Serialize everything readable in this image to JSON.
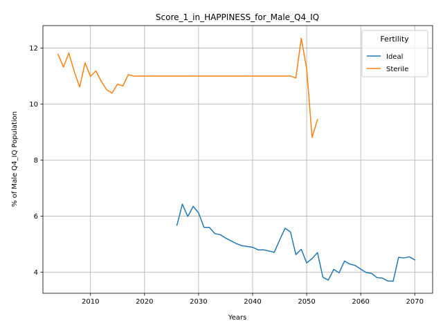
{
  "chart_data": {
    "type": "line",
    "title": "Score_1_in_HAPPINESS_for_Male_Q4_IQ",
    "xlabel": "Years",
    "ylabel": "% of Male Q4_IQ Population",
    "xlim": [
      2001.2,
      2073.3
    ],
    "ylim": [
      3.25,
      12.8
    ],
    "x_ticks": [
      2010,
      2020,
      2030,
      2040,
      2050,
      2060,
      2070
    ],
    "y_ticks": [
      4,
      6,
      8,
      10,
      12
    ],
    "grid": true,
    "legend": {
      "title": "Fertility",
      "placement": "top-right"
    },
    "series": [
      {
        "name": "Ideal",
        "color": "#1f77b4",
        "x": [
          2026,
          2027,
          2028,
          2029,
          2030,
          2031,
          2032,
          2033,
          2034,
          2035,
          2036,
          2037,
          2038,
          2039,
          2040,
          2041,
          2042,
          2043,
          2044,
          2045,
          2046,
          2047,
          2048,
          2049,
          2050,
          2051,
          2052,
          2053,
          2054,
          2055,
          2056,
          2057,
          2058,
          2059,
          2060,
          2061,
          2062,
          2063,
          2064,
          2065,
          2066,
          2067,
          2068,
          2069,
          2070
        ],
        "y": [
          5.68,
          6.43,
          5.99,
          6.35,
          6.12,
          5.6,
          5.6,
          5.38,
          5.34,
          5.22,
          5.12,
          5.02,
          4.95,
          4.92,
          4.89,
          4.8,
          4.8,
          4.76,
          4.71,
          5.15,
          5.57,
          5.44,
          4.63,
          4.82,
          4.33,
          4.49,
          4.7,
          3.82,
          3.72,
          4.1,
          3.98,
          4.4,
          4.29,
          4.24,
          4.11,
          3.99,
          3.96,
          3.81,
          3.79,
          3.69,
          3.68,
          4.53,
          4.51,
          4.55,
          4.44
        ]
      },
      {
        "name": "Sterile",
        "color": "#ff7f0e",
        "x": [
          2004,
          2005,
          2006,
          2007,
          2008,
          2009,
          2010,
          2011,
          2012,
          2013,
          2014,
          2015,
          2016,
          2017,
          2018,
          2019,
          2020,
          2021,
          2022,
          2023,
          2024,
          2025,
          2026,
          2027,
          2028,
          2029,
          2030,
          2031,
          2032,
          2033,
          2034,
          2035,
          2036,
          2037,
          2038,
          2039,
          2040,
          2041,
          2042,
          2043,
          2044,
          2045,
          2046,
          2047,
          2048,
          2049,
          2050,
          2051,
          2052
        ],
        "y": [
          11.78,
          11.32,
          11.82,
          11.16,
          10.61,
          11.47,
          10.99,
          11.18,
          10.81,
          10.51,
          10.39,
          10.71,
          10.65,
          11.05,
          11.0,
          11.0,
          11.0,
          11.0,
          11.0,
          11.0,
          11.0,
          11.0,
          11.0,
          11.0,
          11.0,
          11.0,
          11.0,
          11.0,
          11.0,
          11.0,
          11.0,
          11.0,
          11.0,
          11.0,
          11.0,
          11.0,
          11.0,
          11.0,
          11.0,
          11.0,
          11.0,
          11.0,
          11.0,
          11.0,
          10.93,
          12.35,
          11.26,
          8.81,
          9.45
        ]
      }
    ]
  }
}
